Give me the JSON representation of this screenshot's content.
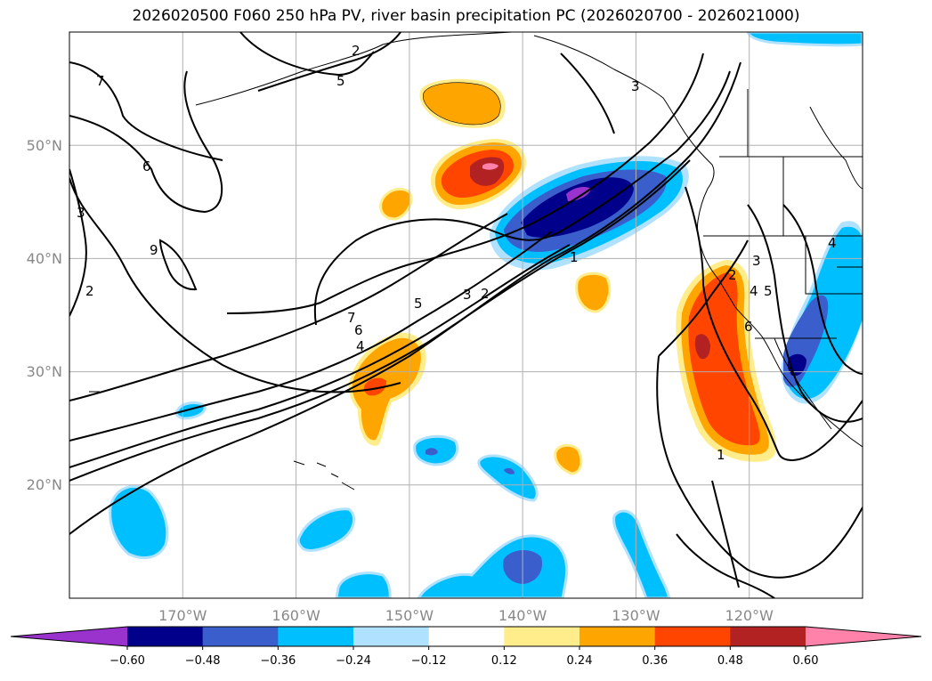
{
  "title": "2026020500 F060 250 hPa PV, river basin precipitation PC (2026020700 - 2026021000)",
  "map": {
    "projection": "cylindrical",
    "lon_range": [
      -180,
      -110
    ],
    "lat_range": [
      10,
      60
    ],
    "lon_ticks": [
      {
        "lon": -170,
        "label": "170°W"
      },
      {
        "lon": -160,
        "label": "160°W"
      },
      {
        "lon": -150,
        "label": "150°W"
      },
      {
        "lon": -140,
        "label": "140°W"
      },
      {
        "lon": -130,
        "label": "130°W"
      },
      {
        "lon": -120,
        "label": "120°W"
      }
    ],
    "lat_ticks": [
      {
        "lat": 20,
        "label": "20°N"
      },
      {
        "lat": 30,
        "label": "30°N"
      },
      {
        "lat": 40,
        "label": "40°N"
      },
      {
        "lat": 50,
        "label": "50°N"
      }
    ],
    "pv_contour_labels": [
      "1",
      "2",
      "3",
      "4",
      "5",
      "6",
      "7",
      "2",
      "3",
      "4",
      "5",
      "6",
      "7",
      "1",
      "2",
      "3",
      "4",
      "5",
      "6",
      "9",
      "2",
      "3"
    ]
  },
  "colorbar": {
    "colors": [
      "#9a32cd",
      "#00008b",
      "#3a5fcd",
      "#00bfff",
      "#b0e2ff",
      "#ffffff",
      "#ffec8b",
      "#ffa500",
      "#ff4500",
      "#b22222",
      "#ff82ab"
    ],
    "ticks": [
      "−0.60",
      "−0.48",
      "−0.36",
      "−0.24",
      "−0.12",
      "0.12",
      "0.24",
      "0.36",
      "0.48",
      "0.60"
    ]
  }
}
